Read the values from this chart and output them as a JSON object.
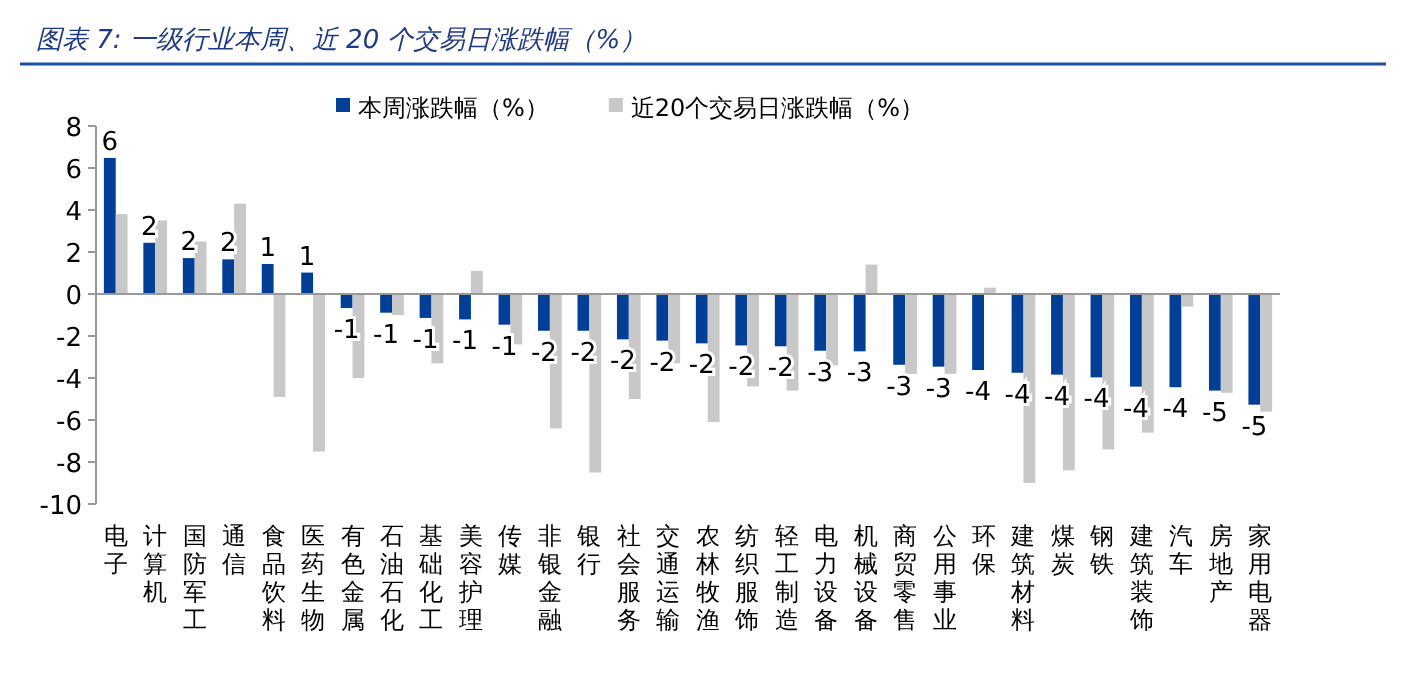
{
  "chart_data": {
    "type": "bar",
    "title": "图表 7: 一级行业本周、近 20 个交易日涨跌幅（%）",
    "categories": [
      "电子",
      "计算机",
      "国防军工",
      "通信",
      "食品饮料",
      "医药生物",
      "有色金属",
      "石油石化",
      "基础化工",
      "美容护理",
      "传媒",
      "非银金融",
      "银行",
      "社会服务",
      "交通运输",
      "农林牧渔",
      "纺织服饰",
      "轻工制造",
      "电力设备",
      "机械设备",
      "商贸零售",
      "公用事业",
      "环保",
      "建筑材料",
      "煤炭",
      "钢铁",
      "建筑装饰",
      "汽车",
      "房地产",
      "家用电器"
    ],
    "series": [
      {
        "name": "本周涨跌幅（%）",
        "color": "#003f98",
        "values": [
          6.48,
          2.44,
          1.71,
          1.65,
          1.43,
          1.02,
          -0.67,
          -0.89,
          -1.14,
          -1.21,
          -1.46,
          -1.75,
          -1.75,
          -2.16,
          -2.22,
          -2.35,
          -2.45,
          -2.49,
          -2.7,
          -2.73,
          -3.37,
          -3.46,
          -3.62,
          -3.75,
          -3.84,
          -3.97,
          -4.41,
          -4.44,
          -4.6,
          -5.27
        ],
        "value_labels": [
          "6",
          "2",
          "2",
          "2",
          "1",
          "1",
          "-1",
          "-1",
          "-1",
          "-1",
          "-1",
          "-2",
          "-2",
          "-2",
          "-2",
          "-2",
          "-2",
          "-2",
          "-3",
          "-3",
          "-3",
          "-3",
          "-4",
          "-4",
          "-4",
          "-4",
          "-4",
          "-4",
          "-5",
          "-5"
        ]
      },
      {
        "name": "近20个交易日涨跌幅（%）",
        "color": "#c8c8c8",
        "values": [
          3.8,
          3.5,
          2.5,
          4.3,
          -4.9,
          -7.5,
          -4.0,
          -1.0,
          -3.3,
          1.1,
          -2.4,
          -6.4,
          -8.5,
          -5.0,
          -3.3,
          -6.1,
          -4.4,
          -4.6,
          -3.4,
          1.4,
          -3.8,
          -3.8,
          0.3,
          -9.0,
          -8.4,
          -7.4,
          -6.6,
          -0.6,
          -4.7,
          -5.6
        ]
      }
    ],
    "ylim": [
      -10,
      8
    ],
    "yticks": [
      -10,
      -8,
      -6,
      -4,
      -2,
      0,
      2,
      4,
      6,
      8
    ],
    "legend": "top"
  }
}
